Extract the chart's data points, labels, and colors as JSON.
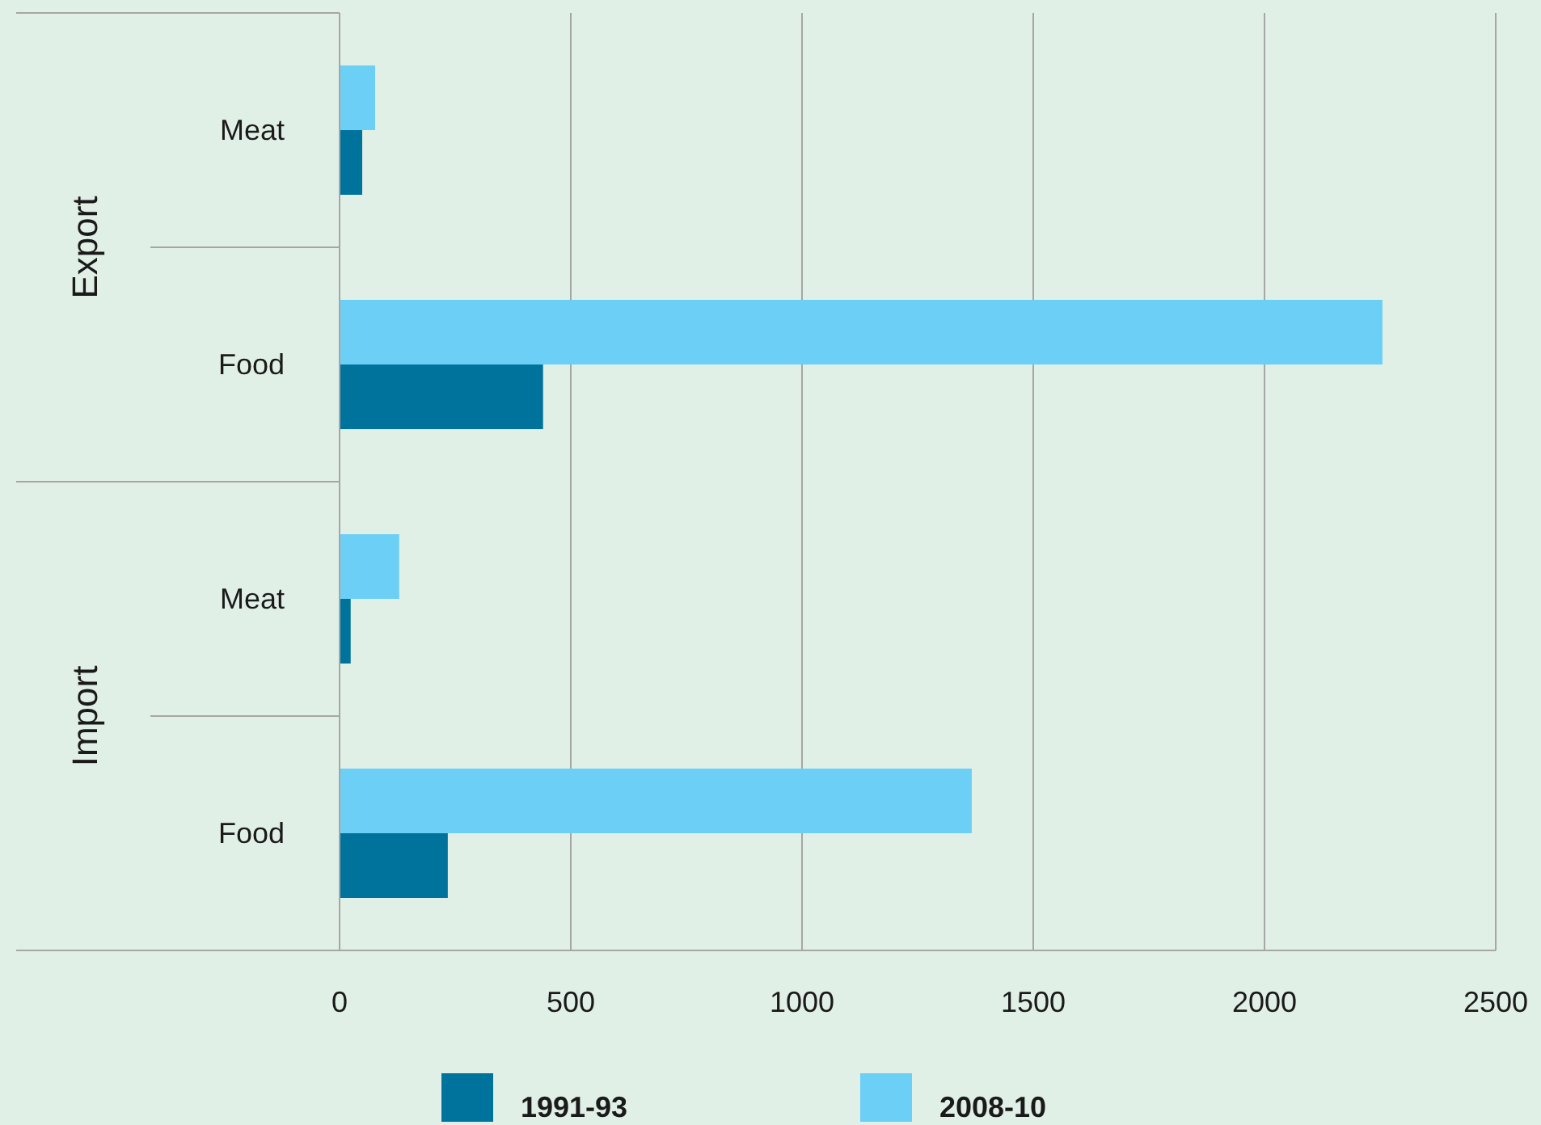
{
  "chart_data": {
    "type": "bar",
    "orientation": "horizontal",
    "categories": [
      "Meat",
      "Food",
      "Meat",
      "Food"
    ],
    "annotations": [
      "Export",
      "Import"
    ],
    "series": [
      {
        "name": "1991-93",
        "color": "#00739c",
        "values": [
          49,
          440,
          24,
          234
        ]
      },
      {
        "name": "2008-10",
        "color": "#6bcff6",
        "values": [
          77,
          2255,
          129,
          1367
        ]
      }
    ],
    "xlim": [
      0,
      2500
    ],
    "xticks": [
      0,
      500,
      1000,
      1500,
      2000,
      2500
    ],
    "grid": "x",
    "legend": "bottom"
  }
}
